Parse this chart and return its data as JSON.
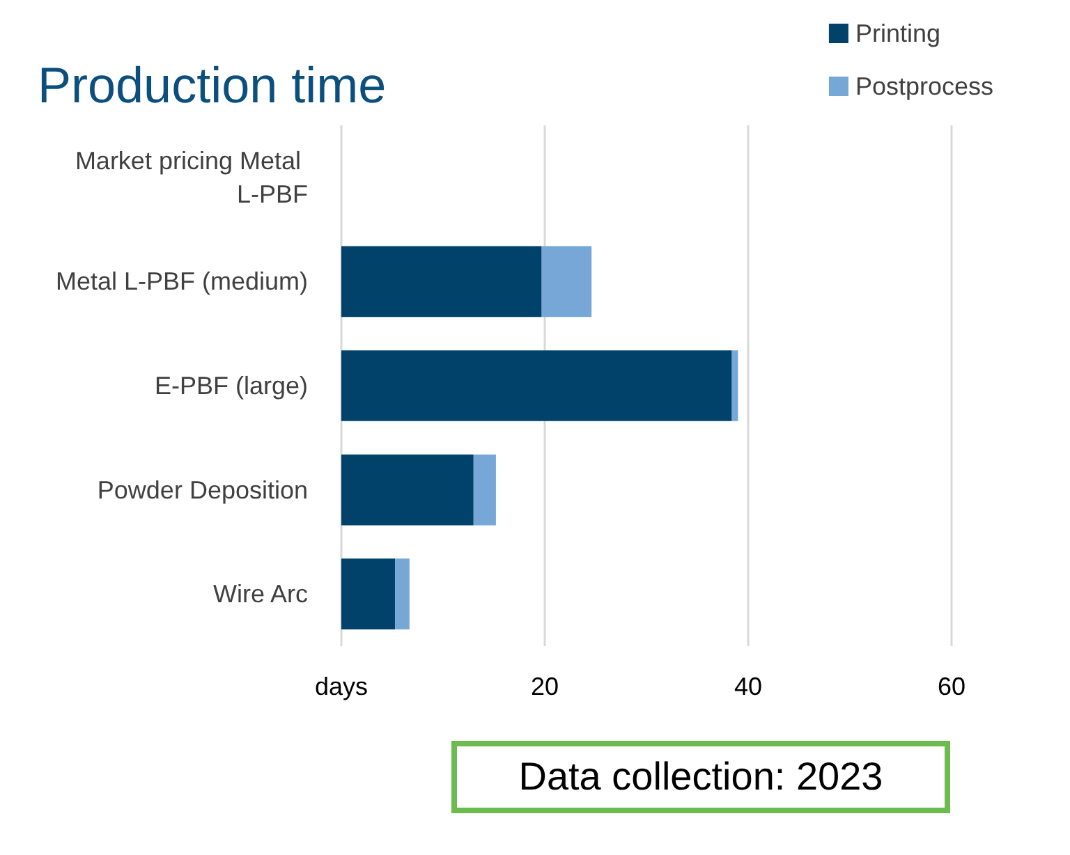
{
  "chart_data": {
    "type": "bar",
    "title": "Production time",
    "orientation": "horizontal",
    "stacked": true,
    "categories": [
      "Market pricing Metal L-PBF",
      "Metal L-PBF (medium)",
      "E-PBF (large)",
      "Powder Deposition",
      "Wire Arc"
    ],
    "series": [
      {
        "name": "Printing",
        "color": "#00426a",
        "values": [
          null,
          19.7,
          38.4,
          13.0,
          5.3
        ]
      },
      {
        "name": "Postprocess",
        "color": "#76a7d6",
        "values": [
          null,
          4.9,
          0.6,
          2.2,
          1.4
        ]
      }
    ],
    "xlim": [
      0,
      60
    ],
    "xticks": [
      {
        "value": 0,
        "label": "days"
      },
      20,
      40,
      60
    ],
    "grid": "x",
    "legend": "top right",
    "annotations": [
      "Data collection: 2023"
    ]
  }
}
